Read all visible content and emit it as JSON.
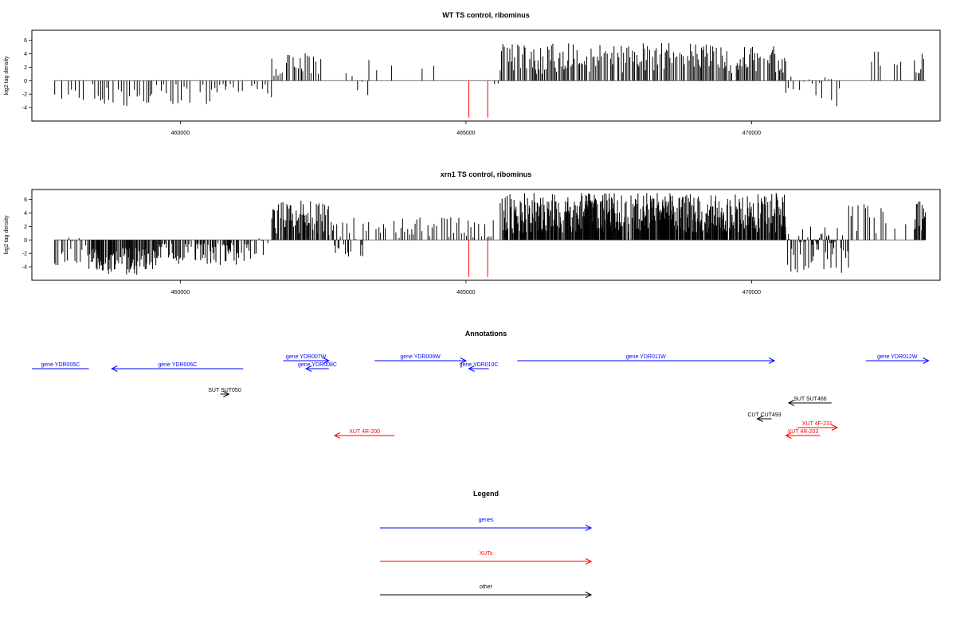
{
  "chart_data": [
    {
      "type": "bar",
      "title": "WT TS control, ribominus",
      "xlabel": "",
      "ylabel": "log2 tag density",
      "xlim": [
        457400,
        473300
      ],
      "ylim": [
        -6,
        7.5
      ],
      "yticks": [
        6,
        4,
        2,
        0,
        -2,
        -4
      ],
      "xticks": [
        460000,
        465000,
        470000
      ],
      "bar_color": "#000000",
      "marker_color": "#ff0000",
      "markers": [
        {
          "x": 465050,
          "y0": 0,
          "y1": -5.5
        },
        {
          "x": 465380,
          "y0": 0,
          "y1": -5.5
        }
      ],
      "regions": [
        {
          "x0": 457800,
          "x1": 458500,
          "min": -3,
          "max": 0,
          "step": 60,
          "seed": 11
        },
        {
          "x0": 458500,
          "x1": 459500,
          "min": -3.8,
          "max": -1,
          "step": 40,
          "seed": 12
        },
        {
          "x0": 459500,
          "x1": 460800,
          "min": -3.5,
          "max": -0.5,
          "step": 45,
          "seed": 13
        },
        {
          "x0": 460800,
          "x1": 461300,
          "min": -2,
          "max": 0,
          "step": 80,
          "seed": 14
        },
        {
          "x0": 461300,
          "x1": 461600,
          "min": -2.5,
          "max": 0.5,
          "step": 70,
          "seed": 15
        },
        {
          "x0": 461600,
          "x1": 462500,
          "min": 0.5,
          "max": 4.2,
          "step": 32,
          "seed": 16
        },
        {
          "x0": 462900,
          "x1": 463300,
          "min": -2.5,
          "max": 1.8,
          "step": 110,
          "seed": 17
        },
        {
          "x0": 463300,
          "x1": 464600,
          "min": 0.3,
          "max": 3.3,
          "step": 190,
          "seed": 18
        },
        {
          "x0": 465500,
          "x1": 465600,
          "min": -0.5,
          "max": 0.8,
          "step": 50,
          "seed": 19
        },
        {
          "x0": 465600,
          "x1": 470600,
          "min": 1,
          "max": 5.6,
          "step": 22,
          "seed": 20
        },
        {
          "x0": 470600,
          "x1": 471400,
          "min": -2.6,
          "max": 1,
          "step": 55,
          "seed": 21
        },
        {
          "x0": 471400,
          "x1": 471600,
          "min": -4,
          "max": -0.5,
          "step": 70,
          "seed": 22
        },
        {
          "x0": 472100,
          "x1": 472300,
          "min": 1,
          "max": 5.5,
          "step": 50,
          "seed": 23
        },
        {
          "x0": 472500,
          "x1": 472650,
          "min": 1.5,
          "max": 3.5,
          "step": 60,
          "seed": 24
        },
        {
          "x0": 472850,
          "x1": 473050,
          "min": 1,
          "max": 4.5,
          "step": 22,
          "seed": 25
        }
      ]
    },
    {
      "type": "bar",
      "title": "xrn1 TS control, ribominus",
      "xlabel": "",
      "ylabel": "log2 tag density",
      "xlim": [
        457400,
        473300
      ],
      "ylim": [
        -6,
        7.5
      ],
      "yticks": [
        6,
        4,
        2,
        0,
        -2,
        -4
      ],
      "xticks": [
        460000,
        465000,
        470000
      ],
      "bar_color": "#000000",
      "marker_color": "#ff0000",
      "markers": [
        {
          "x": 465050,
          "y0": 0,
          "y1": -5.5
        },
        {
          "x": 465380,
          "y0": 0,
          "y1": -5.5
        }
      ],
      "regions": [
        {
          "x0": 457800,
          "x1": 458400,
          "min": -4,
          "max": 0.5,
          "step": 30,
          "seed": 31
        },
        {
          "x0": 458400,
          "x1": 459600,
          "min": -5.2,
          "max": -1,
          "step": 12,
          "seed": 32
        },
        {
          "x0": 459600,
          "x1": 461200,
          "min": -3.8,
          "max": -0.3,
          "step": 16,
          "seed": 33
        },
        {
          "x0": 461200,
          "x1": 461600,
          "min": -3,
          "max": 0.5,
          "step": 40,
          "seed": 34
        },
        {
          "x0": 461600,
          "x1": 462600,
          "min": 0.5,
          "max": 6,
          "step": 14,
          "seed": 35
        },
        {
          "x0": 462600,
          "x1": 463200,
          "min": -3,
          "max": 3.5,
          "step": 22,
          "seed": 36
        },
        {
          "x0": 463200,
          "x1": 465500,
          "min": 0.3,
          "max": 3.5,
          "step": 40,
          "seed": 37
        },
        {
          "x0": 465600,
          "x1": 470600,
          "min": 1,
          "max": 7,
          "step": 9,
          "seed": 38
        },
        {
          "x0": 470600,
          "x1": 471700,
          "min": -5,
          "max": 2,
          "step": 16,
          "seed": 39
        },
        {
          "x0": 471700,
          "x1": 472300,
          "min": 0.5,
          "max": 5.5,
          "step": 30,
          "seed": 40
        },
        {
          "x0": 472350,
          "x1": 472750,
          "min": -0.5,
          "max": 2.5,
          "step": 120,
          "seed": 41
        },
        {
          "x0": 472850,
          "x1": 473050,
          "min": 1,
          "max": 6,
          "step": 12,
          "seed": 42
        }
      ]
    }
  ],
  "annotations": {
    "title": "Annotations",
    "xlim": [
      457400,
      473300
    ],
    "items": [
      {
        "label": "gene YDR005C",
        "start": 457400,
        "end": 458400,
        "strand": "-",
        "color": "#0000ff",
        "arrow": false,
        "row": 2
      },
      {
        "label": "gene YDR006C",
        "start": 458800,
        "end": 461100,
        "strand": "-",
        "color": "#0000ff",
        "arrow": true,
        "row": 2
      },
      {
        "label": "gene YDR007W",
        "start": 461800,
        "end": 462600,
        "strand": "+",
        "color": "#0000ff",
        "arrow": true,
        "row": 1
      },
      {
        "label": "gene YDR008C",
        "start": 462200,
        "end": 462600,
        "strand": "-",
        "color": "#0000ff",
        "arrow": true,
        "row": 2
      },
      {
        "label": "gene YDR009W",
        "start": 463400,
        "end": 465000,
        "strand": "+",
        "color": "#0000ff",
        "arrow": true,
        "row": 1
      },
      {
        "label": "gene YDR010C",
        "start": 465050,
        "end": 465400,
        "strand": "-",
        "color": "#0000ff",
        "arrow": true,
        "row": 2
      },
      {
        "label": "gene YDR011W",
        "start": 465900,
        "end": 470400,
        "strand": "+",
        "color": "#0000ff",
        "arrow": true,
        "row": 1
      },
      {
        "label": "gene YDR012W",
        "start": 472000,
        "end": 473100,
        "strand": "+",
        "color": "#0000ff",
        "arrow": true,
        "row": 1
      },
      {
        "label": "SUT SUT050",
        "start": 460700,
        "end": 460850,
        "strand": "+",
        "color": "#000000",
        "arrow": true,
        "row": 4
      },
      {
        "label": "SUT SUT466",
        "start": 470650,
        "end": 471400,
        "strand": "-",
        "color": "#000000",
        "arrow": true,
        "row": 5
      },
      {
        "label": "CUT CUT493",
        "start": 470100,
        "end": 470350,
        "strand": "-",
        "color": "#000000",
        "arrow": true,
        "row": 6
      },
      {
        "label": "XUT 4F-231",
        "start": 470800,
        "end": 471500,
        "strand": "+",
        "color": "#ff0000",
        "arrow": true,
        "row": 7
      },
      {
        "label": "XUT 4R-200",
        "start": 462700,
        "end": 463750,
        "strand": "-",
        "color": "#ff0000",
        "arrow": true,
        "row": 8
      },
      {
        "label": "XUT 4R-203",
        "start": 470600,
        "end": 471200,
        "strand": "-",
        "color": "#ff0000",
        "arrow": true,
        "row": 8
      }
    ]
  },
  "legend": {
    "title": "Legend",
    "entries": [
      {
        "label": "genes",
        "color": "#0000ff"
      },
      {
        "label": "XUTs",
        "color": "#ff0000"
      },
      {
        "label": "other",
        "color": "#000000"
      }
    ]
  }
}
